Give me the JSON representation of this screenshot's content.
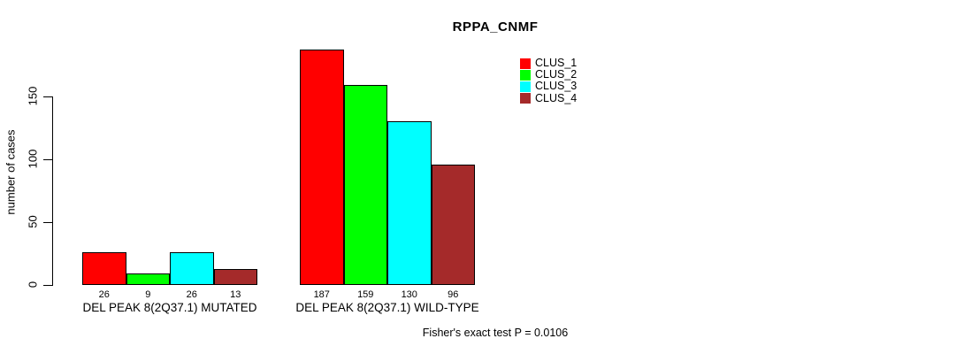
{
  "title": "RPPA_CNMF",
  "chart_data": {
    "type": "bar",
    "title": "RPPA_CNMF",
    "xlabel": "",
    "ylabel": "number of cases",
    "ylim": [
      0,
      150
    ],
    "yticks": [
      0,
      50,
      100,
      150
    ],
    "grid": false,
    "legend_position": "top-right",
    "categories": [
      "DEL PEAK 8(2Q37.1) MUTATED",
      "DEL PEAK 8(2Q37.1) WILD-TYPE"
    ],
    "series": [
      {
        "name": "CLUS_1",
        "color": "#FF0000",
        "values": [
          26,
          187
        ]
      },
      {
        "name": "CLUS_2",
        "color": "#00FF00",
        "values": [
          9,
          159
        ]
      },
      {
        "name": "CLUS_3",
        "color": "#00FFFF",
        "values": [
          26,
          130
        ]
      },
      {
        "name": "CLUS_4",
        "color": "#A52A2A",
        "values": [
          13,
          96
        ]
      }
    ],
    "bar_value_labels": [
      [
        26,
        9,
        26,
        13
      ],
      [
        187,
        159,
        130,
        96
      ]
    ],
    "annotation": "Fisher's exact test P = 0.0106"
  }
}
